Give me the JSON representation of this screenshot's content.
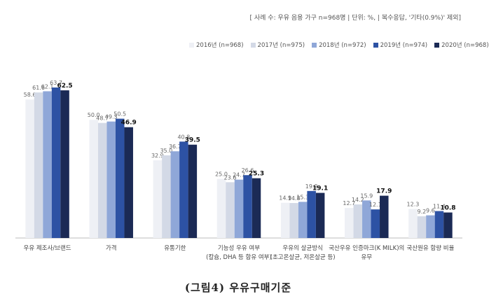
{
  "header_note": "[ 사례 수: 우유 음용 가구 n=968명 | 단위: %, | 복수응답, '기타(0.9%)' 제외]",
  "caption": "(그림4) 우유구매기준",
  "chart_data": {
    "type": "bar",
    "categories": [
      [
        "우유 제조사/브랜드"
      ],
      [
        "가격"
      ],
      [
        "유통기한"
      ],
      [
        "기능성 우유 여부",
        "(칼슘, DHA 등 함유 여부)"
      ],
      [
        "우유의 살균방식",
        "(초고온살균, 저온살균 등)"
      ],
      [
        "국산우유 인증마크(K MILK)의",
        "유무"
      ],
      [
        "국산원유 함량 비율"
      ]
    ],
    "series": [
      {
        "name": "2016년 (n=968)",
        "color": "#eef0f5",
        "values": [
          58.6,
          50.0,
          32.9,
          25.0,
          14.9,
          12.7,
          12.3
        ]
      },
      {
        "name": "2017년 (n=975)",
        "color": "#d3d9e6",
        "values": [
          61.6,
          48.7,
          35.0,
          23.6,
          14.8,
          14.2,
          9.2
        ]
      },
      {
        "name": "2018년 (n=972)",
        "color": "#8fa7d8",
        "values": [
          62.1,
          49.3,
          36.7,
          24.7,
          15.3,
          15.9,
          9.6
        ]
      },
      {
        "name": "2019년 (n=974)",
        "color": "#2d52a4",
        "values": [
          63.7,
          50.5,
          40.8,
          26.6,
          19.9,
          12.1,
          11.4
        ]
      },
      {
        "name": "2020년 (n=968)",
        "color": "#1b2a55",
        "values": [
          62.5,
          46.9,
          39.5,
          25.3,
          19.1,
          17.9,
          10.8
        ]
      }
    ],
    "ylim": [
      0,
      70
    ],
    "grid": false,
    "legend_position": "top-right"
  }
}
